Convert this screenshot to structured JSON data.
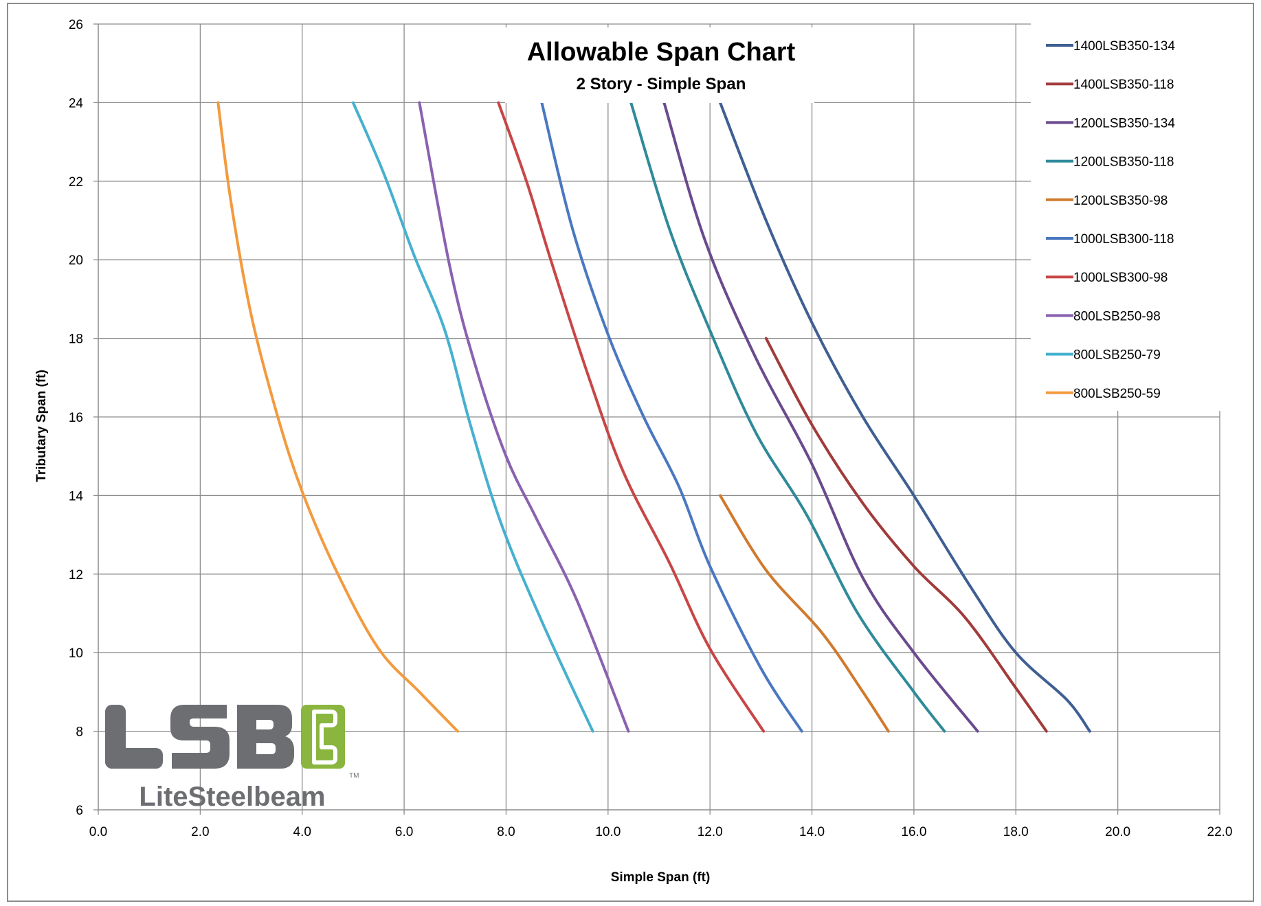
{
  "chart_data": {
    "type": "line",
    "title": "Allowable Span Chart",
    "subtitle": "2 Story  - Simple Span",
    "xlabel": "Simple Span (ft)",
    "ylabel": "Tributary Span (ft)",
    "xlim": [
      0,
      22
    ],
    "ylim": [
      6,
      26
    ],
    "xticks": [
      "0.0",
      "2.0",
      "4.0",
      "6.0",
      "8.0",
      "10.0",
      "12.0",
      "14.0",
      "16.0",
      "18.0",
      "20.0",
      "22.0"
    ],
    "yticks": [
      "6",
      "8",
      "10",
      "12",
      "14",
      "16",
      "18",
      "20",
      "22",
      "24",
      "26"
    ],
    "grid": true,
    "legend_position": "top-right",
    "series": [
      {
        "name": "1400LSB350-134",
        "color": "#3f5f93",
        "x": [
          12.2,
          13.1,
          14.0,
          15.0,
          16.0,
          17.1,
          18.0,
          19.0,
          19.45
        ],
        "y": [
          24,
          21,
          18.4,
          16,
          14,
          11.7,
          10,
          8.8,
          8
        ]
      },
      {
        "name": "1400LSB350-118",
        "color": "#a23b3b",
        "x": [
          13.1,
          14.0,
          15.0,
          16.0,
          17.0,
          18.0,
          18.6
        ],
        "y": [
          18,
          15.8,
          13.8,
          12.2,
          10.9,
          9.1,
          8
        ]
      },
      {
        "name": "1200LSB350-134",
        "color": "#6a4a8e",
        "x": [
          11.1,
          11.9,
          12.9,
          14.0,
          15.0,
          16.0,
          17.25
        ],
        "y": [
          24,
          20.5,
          17.5,
          14.8,
          11.9,
          10.0,
          8
        ]
      },
      {
        "name": "1200LSB350-118",
        "color": "#2f8a9a",
        "x": [
          10.45,
          11.2,
          12.0,
          12.9,
          13.9,
          14.9,
          16.0,
          16.6
        ],
        "y": [
          24,
          20.8,
          18.2,
          15.6,
          13.5,
          11.0,
          9.0,
          8
        ]
      },
      {
        "name": "1200LSB350-98",
        "color": "#d07a2e",
        "x": [
          12.2,
          13.1,
          14.2,
          15.0,
          15.5
        ],
        "y": [
          14,
          12.1,
          10.5,
          9.0,
          8
        ]
      },
      {
        "name": "1000LSB300-118",
        "color": "#4a78c0",
        "x": [
          8.7,
          9.3,
          10.0,
          10.7,
          11.4,
          12.0,
          13.0,
          13.8
        ],
        "y": [
          24,
          20.8,
          18.1,
          16.0,
          14.2,
          12.2,
          9.6,
          8
        ]
      },
      {
        "name": "1000LSB300-98",
        "color": "#c84646",
        "x": [
          7.85,
          8.4,
          8.9,
          9.6,
          10.3,
          11.2,
          12.0,
          13.05
        ],
        "y": [
          24,
          22.0,
          19.9,
          17.1,
          14.6,
          12.3,
          10.1,
          8
        ]
      },
      {
        "name": "800LSB250-98",
        "color": "#8a62b0",
        "x": [
          6.3,
          6.9,
          7.4,
          8.0,
          8.6,
          9.4,
          10.4
        ],
        "y": [
          24,
          19.8,
          17.3,
          15.0,
          13.4,
          11.3,
          8
        ]
      },
      {
        "name": "800LSB250-79",
        "color": "#46b0cf",
        "x": [
          5.0,
          5.6,
          6.2,
          6.8,
          7.3,
          7.9,
          8.7,
          9.7
        ],
        "y": [
          24,
          22.2,
          20.1,
          18.2,
          15.8,
          13.3,
          10.8,
          8
        ]
      },
      {
        "name": "800LSB250-59",
        "color": "#f39a3e",
        "x": [
          2.35,
          2.6,
          3.0,
          3.5,
          4.0,
          4.7,
          5.5,
          6.3,
          7.05
        ],
        "y": [
          24,
          21.5,
          18.6,
          16.1,
          14.1,
          12.0,
          10.1,
          9.0,
          8
        ]
      }
    ]
  },
  "logo": {
    "text": "LSB",
    "subtext": "LiteSteelbeam",
    "trademark": "TM",
    "primary_color": "#6d6e71",
    "accent_color": "#8ab63f"
  }
}
